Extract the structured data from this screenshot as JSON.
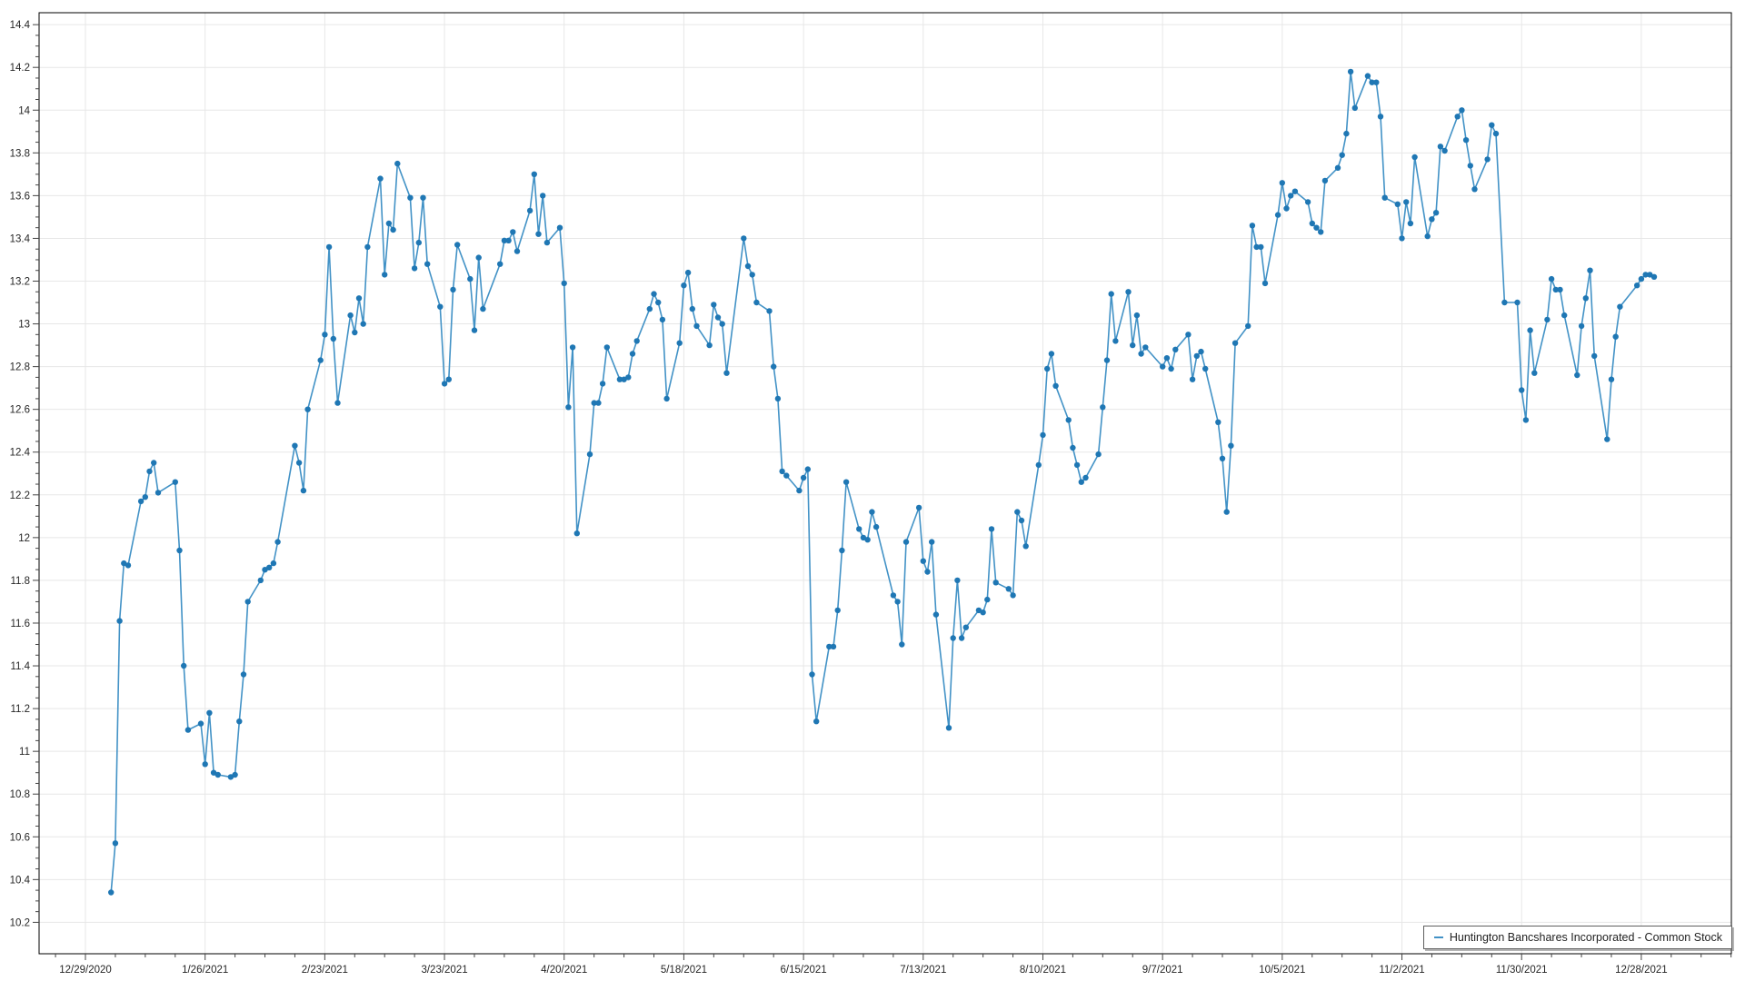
{
  "chart_data": {
    "type": "line",
    "title": "",
    "xlabel": "",
    "ylabel": "",
    "grid": true,
    "legend_position": "lower-right",
    "background_color": "#ffffff",
    "gridline_color": "#e7e7e7",
    "spine_color": "#000000",
    "tick_color": "#444444",
    "label_color": "#262626",
    "y_axis": {
      "min_label": "10.2",
      "max_label": "14.4",
      "tick_step": 0.2,
      "tick_labels": [
        "10.2",
        "10.4",
        "10.6",
        "10.8",
        "11",
        "11.2",
        "11.4",
        "11.6",
        "11.8",
        "12",
        "12.2",
        "12.4",
        "12.6",
        "12.8",
        "13",
        "13.2",
        "13.4",
        "13.6",
        "13.8",
        "14",
        "14.2",
        "14.4"
      ],
      "tick_values": [
        10.2,
        10.4,
        10.6,
        10.8,
        11,
        11.2,
        11.4,
        11.6,
        11.8,
        12,
        12.2,
        12.4,
        12.6,
        12.8,
        13,
        13.2,
        13.4,
        13.6,
        13.8,
        14,
        14.2,
        14.4
      ]
    },
    "x_axis": {
      "first_tick_date": "12/29/2020",
      "tick_interval_days": 28,
      "tick_labels": [
        "12/29/2020",
        "1/26/2021",
        "2/23/2021",
        "3/23/2021",
        "4/20/2021",
        "5/18/2021",
        "6/15/2021",
        "7/13/2021",
        "8/10/2021",
        "9/7/2021",
        "10/5/2021",
        "11/2/2021",
        "11/30/2021",
        "12/28/2021"
      ]
    },
    "series": [
      {
        "name": "Huntington Bancshares Incorporated - Common Stock",
        "marker_color": "#1f77b4",
        "line_color": "#4292c6",
        "year": 2021,
        "points": [
          [
            "1/4",
            10.34
          ],
          [
            "1/5",
            10.57
          ],
          [
            "1/6",
            11.61
          ],
          [
            "1/7",
            11.88
          ],
          [
            "1/8",
            11.87
          ],
          [
            "1/11",
            12.17
          ],
          [
            "1/12",
            12.19
          ],
          [
            "1/13",
            12.31
          ],
          [
            "1/14",
            12.35
          ],
          [
            "1/15",
            12.21
          ],
          [
            "1/19",
            12.26
          ],
          [
            "1/20",
            11.94
          ],
          [
            "1/21",
            11.4
          ],
          [
            "1/22",
            11.1
          ],
          [
            "1/25",
            11.13
          ],
          [
            "1/26",
            10.94
          ],
          [
            "1/27",
            11.18
          ],
          [
            "1/28",
            10.9
          ],
          [
            "1/29",
            10.89
          ],
          [
            "2/1",
            10.88
          ],
          [
            "2/2",
            10.89
          ],
          [
            "2/3",
            11.14
          ],
          [
            "2/4",
            11.36
          ],
          [
            "2/5",
            11.7
          ],
          [
            "2/8",
            11.8
          ],
          [
            "2/9",
            11.85
          ],
          [
            "2/10",
            11.86
          ],
          [
            "2/11",
            11.88
          ],
          [
            "2/12",
            11.98
          ],
          [
            "2/16",
            12.43
          ],
          [
            "2/17",
            12.35
          ],
          [
            "2/18",
            12.22
          ],
          [
            "2/19",
            12.6
          ],
          [
            "2/22",
            12.83
          ],
          [
            "2/23",
            12.95
          ],
          [
            "2/24",
            13.36
          ],
          [
            "2/25",
            12.93
          ],
          [
            "2/26",
            12.63
          ],
          [
            "3/1",
            13.04
          ],
          [
            "3/2",
            12.96
          ],
          [
            "3/3",
            13.12
          ],
          [
            "3/4",
            13.0
          ],
          [
            "3/5",
            13.36
          ],
          [
            "3/8",
            13.68
          ],
          [
            "3/9",
            13.23
          ],
          [
            "3/10",
            13.47
          ],
          [
            "3/11",
            13.44
          ],
          [
            "3/12",
            13.75
          ],
          [
            "3/15",
            13.59
          ],
          [
            "3/16",
            13.26
          ],
          [
            "3/17",
            13.38
          ],
          [
            "3/18",
            13.59
          ],
          [
            "3/19",
            13.28
          ],
          [
            "3/22",
            13.08
          ],
          [
            "3/23",
            12.72
          ],
          [
            "3/24",
            12.74
          ],
          [
            "3/25",
            13.16
          ],
          [
            "3/26",
            13.37
          ],
          [
            "3/29",
            13.21
          ],
          [
            "3/30",
            12.97
          ],
          [
            "3/31",
            13.31
          ],
          [
            "4/1",
            13.07
          ],
          [
            "4/5",
            13.28
          ],
          [
            "4/6",
            13.39
          ],
          [
            "4/7",
            13.39
          ],
          [
            "4/8",
            13.43
          ],
          [
            "4/9",
            13.34
          ],
          [
            "4/12",
            13.53
          ],
          [
            "4/13",
            13.7
          ],
          [
            "4/14",
            13.42
          ],
          [
            "4/15",
            13.6
          ],
          [
            "4/16",
            13.38
          ],
          [
            "4/19",
            13.45
          ],
          [
            "4/20",
            13.19
          ],
          [
            "4/21",
            12.61
          ],
          [
            "4/22",
            12.89
          ],
          [
            "4/23",
            12.02
          ],
          [
            "4/26",
            12.39
          ],
          [
            "4/27",
            12.63
          ],
          [
            "4/28",
            12.63
          ],
          [
            "4/29",
            12.72
          ],
          [
            "4/30",
            12.89
          ],
          [
            "5/3",
            12.74
          ],
          [
            "5/4",
            12.74
          ],
          [
            "5/5",
            12.75
          ],
          [
            "5/6",
            12.86
          ],
          [
            "5/7",
            12.92
          ],
          [
            "5/10",
            13.07
          ],
          [
            "5/11",
            13.14
          ],
          [
            "5/12",
            13.1
          ],
          [
            "5/13",
            13.02
          ],
          [
            "5/14",
            12.65
          ],
          [
            "5/17",
            12.91
          ],
          [
            "5/18",
            13.18
          ],
          [
            "5/19",
            13.24
          ],
          [
            "5/20",
            13.07
          ],
          [
            "5/21",
            12.99
          ],
          [
            "5/24",
            12.9
          ],
          [
            "5/25",
            13.09
          ],
          [
            "5/26",
            13.03
          ],
          [
            "5/27",
            13.0
          ],
          [
            "5/28",
            12.77
          ],
          [
            "6/1",
            13.4
          ],
          [
            "6/2",
            13.27
          ],
          [
            "6/3",
            13.23
          ],
          [
            "6/4",
            13.1
          ],
          [
            "6/7",
            13.06
          ],
          [
            "6/8",
            12.8
          ],
          [
            "6/9",
            12.65
          ],
          [
            "6/10",
            12.31
          ],
          [
            "6/11",
            12.29
          ],
          [
            "6/14",
            12.22
          ],
          [
            "6/15",
            12.28
          ],
          [
            "6/16",
            12.32
          ],
          [
            "6/17",
            11.36
          ],
          [
            "6/18",
            11.14
          ],
          [
            "6/21",
            11.49
          ],
          [
            "6/22",
            11.49
          ],
          [
            "6/23",
            11.66
          ],
          [
            "6/24",
            11.94
          ],
          [
            "6/25",
            12.26
          ],
          [
            "6/28",
            12.04
          ],
          [
            "6/29",
            12.0
          ],
          [
            "6/30",
            11.99
          ],
          [
            "7/1",
            12.12
          ],
          [
            "7/2",
            12.05
          ],
          [
            "7/6",
            11.73
          ],
          [
            "7/7",
            11.7
          ],
          [
            "7/8",
            11.5
          ],
          [
            "7/9",
            11.98
          ],
          [
            "7/12",
            12.14
          ],
          [
            "7/13",
            11.89
          ],
          [
            "7/14",
            11.84
          ],
          [
            "7/15",
            11.98
          ],
          [
            "7/16",
            11.64
          ],
          [
            "7/19",
            11.11
          ],
          [
            "7/20",
            11.53
          ],
          [
            "7/21",
            11.8
          ],
          [
            "7/22",
            11.53
          ],
          [
            "7/23",
            11.58
          ],
          [
            "7/26",
            11.66
          ],
          [
            "7/27",
            11.65
          ],
          [
            "7/28",
            11.71
          ],
          [
            "7/29",
            12.04
          ],
          [
            "7/30",
            11.79
          ],
          [
            "8/2",
            11.76
          ],
          [
            "8/3",
            11.73
          ],
          [
            "8/4",
            12.12
          ],
          [
            "8/5",
            12.08
          ],
          [
            "8/6",
            11.96
          ],
          [
            "8/9",
            12.34
          ],
          [
            "8/10",
            12.48
          ],
          [
            "8/11",
            12.79
          ],
          [
            "8/12",
            12.86
          ],
          [
            "8/13",
            12.71
          ],
          [
            "8/16",
            12.55
          ],
          [
            "8/17",
            12.42
          ],
          [
            "8/18",
            12.34
          ],
          [
            "8/19",
            12.26
          ],
          [
            "8/20",
            12.28
          ],
          [
            "8/23",
            12.39
          ],
          [
            "8/24",
            12.61
          ],
          [
            "8/25",
            12.83
          ],
          [
            "8/26",
            13.14
          ],
          [
            "8/27",
            12.92
          ],
          [
            "8/30",
            13.15
          ],
          [
            "8/31",
            12.9
          ],
          [
            "9/1",
            13.04
          ],
          [
            "9/2",
            12.86
          ],
          [
            "9/3",
            12.89
          ],
          [
            "9/7",
            12.8
          ],
          [
            "9/8",
            12.84
          ],
          [
            "9/9",
            12.79
          ],
          [
            "9/10",
            12.88
          ],
          [
            "9/13",
            12.95
          ],
          [
            "9/14",
            12.74
          ],
          [
            "9/15",
            12.85
          ],
          [
            "9/16",
            12.87
          ],
          [
            "9/17",
            12.79
          ],
          [
            "9/20",
            12.54
          ],
          [
            "9/21",
            12.37
          ],
          [
            "9/22",
            12.12
          ],
          [
            "9/23",
            12.43
          ],
          [
            "9/24",
            12.91
          ],
          [
            "9/27",
            12.99
          ],
          [
            "9/28",
            13.46
          ],
          [
            "9/29",
            13.36
          ],
          [
            "9/30",
            13.36
          ],
          [
            "10/1",
            13.19
          ],
          [
            "10/4",
            13.51
          ],
          [
            "10/5",
            13.66
          ],
          [
            "10/6",
            13.54
          ],
          [
            "10/7",
            13.6
          ],
          [
            "10/8",
            13.62
          ],
          [
            "10/11",
            13.57
          ],
          [
            "10/12",
            13.47
          ],
          [
            "10/13",
            13.45
          ],
          [
            "10/14",
            13.43
          ],
          [
            "10/15",
            13.67
          ],
          [
            "10/18",
            13.73
          ],
          [
            "10/19",
            13.79
          ],
          [
            "10/20",
            13.89
          ],
          [
            "10/21",
            14.18
          ],
          [
            "10/22",
            14.01
          ],
          [
            "10/25",
            14.16
          ],
          [
            "10/26",
            14.13
          ],
          [
            "10/27",
            14.13
          ],
          [
            "10/28",
            13.97
          ],
          [
            "10/29",
            13.59
          ],
          [
            "11/1",
            13.56
          ],
          [
            "11/2",
            13.4
          ],
          [
            "11/3",
            13.57
          ],
          [
            "11/4",
            13.47
          ],
          [
            "11/5",
            13.78
          ],
          [
            "11/8",
            13.41
          ],
          [
            "11/9",
            13.49
          ],
          [
            "11/10",
            13.52
          ],
          [
            "11/11",
            13.83
          ],
          [
            "11/12",
            13.81
          ],
          [
            "11/15",
            13.97
          ],
          [
            "11/16",
            14.0
          ],
          [
            "11/17",
            13.86
          ],
          [
            "11/18",
            13.74
          ],
          [
            "11/19",
            13.63
          ],
          [
            "11/22",
            13.77
          ],
          [
            "11/23",
            13.93
          ],
          [
            "11/24",
            13.89
          ],
          [
            "11/26",
            13.1
          ],
          [
            "11/29",
            13.1
          ],
          [
            "11/30",
            12.69
          ],
          [
            "12/1",
            12.55
          ],
          [
            "12/2",
            12.97
          ],
          [
            "12/3",
            12.77
          ],
          [
            "12/6",
            13.02
          ],
          [
            "12/7",
            13.21
          ],
          [
            "12/8",
            13.16
          ],
          [
            "12/9",
            13.16
          ],
          [
            "12/10",
            13.04
          ],
          [
            "12/13",
            12.76
          ],
          [
            "12/14",
            12.99
          ],
          [
            "12/15",
            13.12
          ],
          [
            "12/16",
            13.25
          ],
          [
            "12/17",
            12.85
          ],
          [
            "12/20",
            12.46
          ],
          [
            "12/21",
            12.74
          ],
          [
            "12/22",
            12.94
          ],
          [
            "12/23",
            13.08
          ],
          [
            "12/27",
            13.18
          ],
          [
            "12/28",
            13.21
          ],
          [
            "12/29",
            13.23
          ],
          [
            "12/30",
            13.23
          ],
          [
            "12/31",
            13.22
          ]
        ]
      }
    ]
  },
  "legend": {
    "label": "Huntington Bancshares Incorporated - Common Stock"
  }
}
